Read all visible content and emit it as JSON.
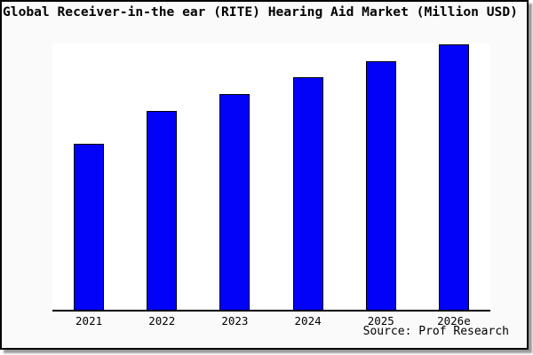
{
  "frame": {
    "background": "#fafafa",
    "border_color": "#000000",
    "shadow_color": "#9a9a9a"
  },
  "chart_data": {
    "type": "bar",
    "title": "Global Receiver-in-the ear (RITE) Hearing Aid Market (Million USD)",
    "categories": [
      "2021",
      "2022",
      "2023",
      "2024",
      "2025",
      "2026e"
    ],
    "values": [
      62.7,
      74.9,
      81.4,
      87.7,
      93.7,
      100
    ],
    "value_scale_note": "no y-axis ticks shown; values are relative bar heights with tallest bar = 100",
    "xlabel": "",
    "ylabel": "",
    "ylim": [
      0,
      100
    ],
    "grid": false,
    "legend": false,
    "bar_color": "#0202f8",
    "bar_border_color": "#000000",
    "plot_background": "#ffffff",
    "source_label": "Source: Prof Research"
  }
}
